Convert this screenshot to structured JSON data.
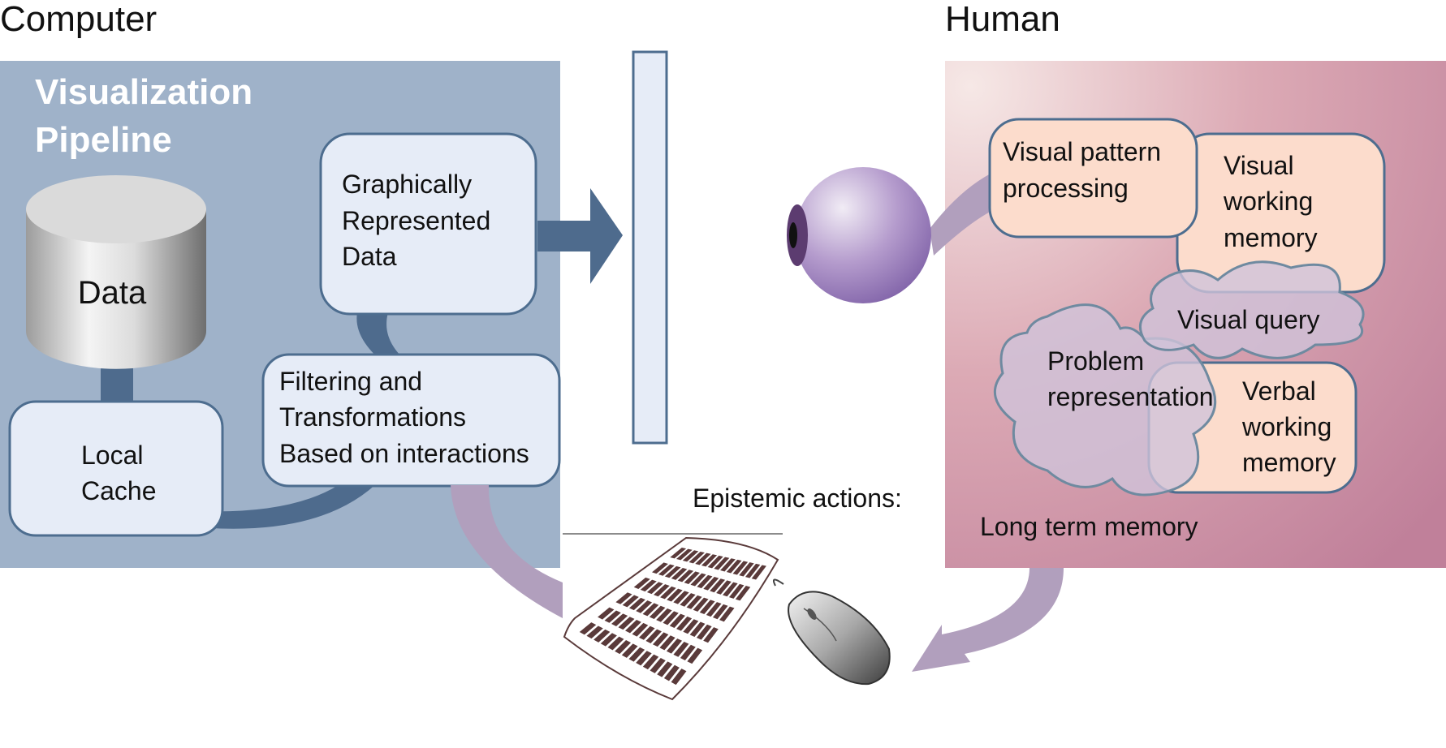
{
  "labels": {
    "computer": "Computer",
    "human": "Human",
    "pipeline_line1": "Visualization",
    "pipeline_line2": "Pipeline",
    "data": "Data",
    "local_cache_line1": "Local",
    "local_cache_line2": "Cache",
    "filtering_line1": "Filtering and",
    "filtering_line2": "Transformations",
    "filtering_line3": "Based on interactions",
    "graphic_line1": "Graphically",
    "graphic_line2": "Represented",
    "graphic_line3": "Data",
    "epistemic": "Epistemic actions:",
    "vpp_line1": "Visual pattern",
    "vpp_line2": "processing",
    "vwm_line1": "Visual",
    "vwm_line2": "working",
    "vwm_line3": "memory",
    "vq": "Visual query",
    "pr_line1": "Problem",
    "pr_line2": "representation",
    "verbal_line1": "Verbal",
    "verbal_line2": "working",
    "verbal_line3": "memory",
    "ltm": "Long term memory"
  },
  "colors": {
    "computer_panel": "#9fb2c9",
    "pipeline_box": "#e6ecf7",
    "box_stroke": "#4d6d8f",
    "dark_arrow": "#4e6b8d",
    "human_panel_light": "#f3dfe0",
    "human_panel_dark": "#c4879f",
    "peach_box": "#fcdccc",
    "lavender_cloud": "#cfc3d9",
    "purple_arrow": "#b19fbd",
    "eye": "#9a7bbd"
  },
  "icons": {
    "database": "database-cylinder-icon",
    "eye": "eye-icon",
    "keyboard": "keyboard-icon",
    "mouse": "mouse-icon",
    "screen": "display-screen-icon"
  }
}
